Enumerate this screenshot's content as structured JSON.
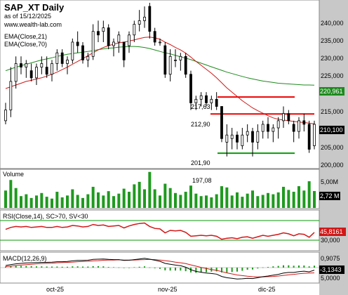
{
  "header": {
    "title": "SAP_XT Daily",
    "date_line": "as of 15/12/2025",
    "source": "www.wealth-lab.com"
  },
  "colors": {
    "bull_candle": "#ffffff",
    "bear_candle": "#000000",
    "ema21": "#d01818",
    "ema70": "#1e8a1e",
    "hline_red": "#ee0000",
    "hline_green": "#0a9a0a",
    "volume_bar": "#1f9a1f",
    "axis_panel": "#c8c8c8",
    "last_price_box": "#000000",
    "ema70_box": "#1e8a1e",
    "rsi_box": "#d01818",
    "macd_box": "#000000"
  },
  "price_panel": {
    "legend": [
      "EMA(Close,21)",
      "EMA(Close,70)"
    ],
    "axis_labels": [
      "240,000",
      "235,000",
      "230,000",
      "225,000",
      "215,000",
      "205,000",
      "200,000"
    ],
    "last_price_label": "210,100",
    "ema70_label": "220,961",
    "annotations": [
      {
        "text": "217,63",
        "price": 217.63
      },
      {
        "text": "212,90",
        "price": 212.9
      },
      {
        "text": "201,90",
        "price": 201.9
      }
    ],
    "level_lines": [
      {
        "price": 217.63,
        "color": "red"
      },
      {
        "price": 212.9,
        "color": "red"
      },
      {
        "price": 201.9,
        "color": "green"
      }
    ]
  },
  "volume_panel": {
    "title": "Volume",
    "annotation": "197,08",
    "axis_labels": [
      "5,00M"
    ],
    "last_label": "2,72 M"
  },
  "rsi_panel": {
    "title": "RSI(Close,14), SC>70, SV<30",
    "axis_labels": [
      "30,000"
    ],
    "last_label": "45,8161"
  },
  "macd_panel": {
    "title": "MACD(12,26,9)",
    "axis_labels": [
      "5,0000"
    ],
    "last_label_1": "0,9075",
    "last_label_2": "-3,1343"
  },
  "x_axis": {
    "labels": [
      "oct-25",
      "nov-25",
      "dic-25"
    ]
  },
  "chart_data": {
    "type": "candlestick",
    "ylim": [
      198,
      244
    ],
    "ohlc": [
      [
        211,
        216,
        210,
        214
      ],
      [
        214,
        226,
        212,
        222
      ],
      [
        222,
        229,
        220,
        227
      ],
      [
        227,
        229,
        224,
        226
      ],
      [
        226,
        228,
        223,
        227
      ],
      [
        225,
        227,
        222,
        223
      ],
      [
        223,
        227,
        221,
        226
      ],
      [
        226,
        229,
        224,
        227
      ],
      [
        226,
        229,
        223,
        224
      ],
      [
        224,
        228,
        222,
        227
      ],
      [
        227,
        231,
        225,
        230
      ],
      [
        230,
        231,
        226,
        227
      ],
      [
        227,
        229,
        224,
        228
      ],
      [
        228,
        234,
        227,
        233
      ],
      [
        233,
        236,
        230,
        232
      ],
      [
        232,
        233,
        227,
        228
      ],
      [
        228,
        230,
        226,
        229
      ],
      [
        229,
        238,
        228,
        236
      ],
      [
        236,
        239,
        233,
        235
      ],
      [
        236,
        239,
        233,
        237
      ],
      [
        237,
        238,
        231,
        232
      ],
      [
        232,
        234,
        229,
        233
      ],
      [
        233,
        236,
        230,
        235
      ],
      [
        233,
        233,
        226,
        228
      ],
      [
        232,
        236,
        230,
        235
      ],
      [
        235,
        239,
        233,
        238
      ],
      [
        238,
        242,
        236,
        239
      ],
      [
        239,
        243,
        237,
        240
      ],
      [
        243,
        244,
        234,
        236
      ],
      [
        236,
        237,
        232,
        233
      ],
      [
        233,
        234,
        232,
        233
      ],
      [
        232,
        233,
        223,
        224
      ],
      [
        224,
        231,
        222,
        229
      ],
      [
        228,
        231,
        226,
        228
      ],
      [
        228,
        230,
        225,
        229
      ],
      [
        229,
        230,
        223,
        224
      ],
      [
        224,
        225,
        214,
        216
      ],
      [
        216,
        218,
        214,
        217
      ],
      [
        217,
        219,
        215,
        218
      ],
      [
        218,
        219,
        215,
        216
      ],
      [
        216,
        218,
        214,
        217
      ],
      [
        217,
        219,
        214,
        215
      ],
      [
        215,
        215,
        205,
        206
      ],
      [
        205,
        210,
        201,
        207
      ],
      [
        206,
        209,
        203,
        207
      ],
      [
        207,
        208,
        203,
        205
      ],
      [
        204,
        209,
        203,
        207
      ],
      [
        207,
        210,
        205,
        208
      ],
      [
        208,
        209,
        201,
        205
      ],
      [
        205,
        210,
        203,
        208
      ],
      [
        208,
        211,
        206,
        210
      ],
      [
        210,
        212,
        206,
        208
      ],
      [
        208,
        210,
        205,
        209
      ],
      [
        209,
        212,
        206,
        211
      ],
      [
        211,
        215,
        209,
        213
      ],
      [
        213,
        214,
        210,
        211
      ],
      [
        210,
        211,
        205,
        208
      ],
      [
        208,
        212,
        206,
        211
      ],
      [
        211,
        213,
        208,
        210
      ],
      [
        210,
        211,
        202,
        203
      ],
      [
        204,
        211,
        203,
        210
      ]
    ],
    "ema21": [
      220,
      220.5,
      221,
      221.5,
      222,
      222.3,
      222.7,
      223,
      223.5,
      224,
      224.6,
      225.3,
      226,
      226.8,
      227.6,
      228.4,
      229.2,
      230,
      230.8,
      231.5,
      232,
      232.4,
      232.8,
      233,
      233.3,
      233.6,
      234,
      234.3,
      234.4,
      234.2,
      233.8,
      233,
      232.3,
      231.5,
      230.8,
      229.9,
      228.8,
      227.6,
      226.5,
      225.4,
      224.3,
      223,
      221.6,
      220.2,
      219,
      217.8,
      216.6,
      215.6,
      214.6,
      213.8,
      213.1,
      212.4,
      211.8,
      211.4,
      211.2,
      211,
      210.8,
      210.6,
      210.5,
      210.3,
      210.1
    ],
    "ema70": [
      225,
      225.5,
      226,
      226.4,
      226.8,
      227.2,
      227.6,
      228,
      228.3,
      228.6,
      229,
      229.3,
      229.6,
      229.8,
      230,
      230.2,
      230.4,
      230.6,
      230.9,
      231.1,
      231.3,
      231.4,
      231.6,
      231.7,
      231.8,
      231.8,
      231.7,
      231.5,
      231.2,
      230.8,
      230.4,
      230,
      229.7,
      229.3,
      228.9,
      228.5,
      228.1,
      227.6,
      227.1,
      226.6,
      226.1,
      225.6,
      225.1,
      224.6,
      224.2,
      223.8,
      223.4,
      223,
      222.7,
      222.4,
      222.1,
      221.9,
      221.7,
      221.5,
      221.4,
      221.3,
      221.2,
      221.1,
      221,
      221,
      220.961
    ],
    "volume": [
      2.8,
      4.5,
      3.2,
      1.9,
      2.2,
      1.6,
      2.0,
      2.4,
      1.8,
      1.5,
      2.6,
      1.7,
      2.0,
      3.0,
      2.1,
      1.6,
      2.2,
      3.4,
      2.5,
      2.0,
      2.7,
      1.9,
      2.3,
      3.1,
      2.6,
      3.8,
      4.2,
      3.0,
      5.8,
      3.0,
      2.0,
      3.9,
      3.2,
      2.4,
      2.1,
      2.6,
      3.6,
      2.3,
      1.9,
      2.0,
      1.7,
      2.2,
      3.5,
      3.3,
      2.0,
      2.5,
      1.8,
      2.3,
      2.8,
      1.9,
      2.1,
      2.4,
      2.2,
      2.5,
      3.4,
      2.9,
      2.6,
      3.5,
      2.8,
      4.3,
      2.72
    ],
    "rsi": [
      52,
      56,
      58,
      57,
      58,
      56,
      57,
      58,
      56,
      56,
      58,
      56,
      57,
      60,
      59,
      57,
      58,
      62,
      60,
      61,
      58,
      59,
      60,
      55,
      59,
      62,
      64,
      65,
      58,
      54,
      53,
      45,
      50,
      49,
      50,
      46,
      38,
      39,
      40,
      39,
      40,
      38,
      32,
      34,
      35,
      33,
      36,
      37,
      34,
      37,
      40,
      38,
      40,
      42,
      45,
      43,
      39,
      43,
      42,
      36,
      45.8
    ],
    "macd": [
      1,
      1.4,
      1.8,
      2,
      2.2,
      2.3,
      2.4,
      2.5,
      2.5,
      2.6,
      2.8,
      2.8,
      2.9,
      3.2,
      3.4,
      3.4,
      3.5,
      3.9,
      4.0,
      4.1,
      3.9,
      3.8,
      3.8,
      3.4,
      3.5,
      3.8,
      4.1,
      4.4,
      4.0,
      3.5,
      3.0,
      2.0,
      1.6,
      1.2,
      0.9,
      0.2,
      -1.0,
      -1.8,
      -2.2,
      -2.6,
      -2.8,
      -3.1,
      -4.2,
      -4.8,
      -5.1,
      -5.4,
      -5.3,
      -5.1,
      -5.2,
      -4.8,
      -4.3,
      -4.0,
      -3.6,
      -3.2,
      -2.6,
      -2.3,
      -2.3,
      -1.9,
      -1.7,
      -2.0,
      -1.2
    ],
    "macd_signal": [
      0.5,
      0.7,
      1.0,
      1.2,
      1.4,
      1.6,
      1.8,
      1.9,
      2.0,
      2.1,
      2.3,
      2.4,
      2.5,
      2.6,
      2.8,
      2.9,
      3.0,
      3.2,
      3.3,
      3.5,
      3.6,
      3.6,
      3.7,
      3.6,
      3.6,
      3.6,
      3.7,
      3.8,
      3.9,
      3.8,
      3.6,
      3.3,
      3.0,
      2.6,
      2.3,
      1.9,
      1.3,
      0.7,
      0.1,
      -0.4,
      -0.9,
      -1.3,
      -1.9,
      -2.5,
      -3.0,
      -3.5,
      -3.8,
      -4.1,
      -4.3,
      -4.4,
      -4.4,
      -4.3,
      -4.2,
      -4.0,
      -3.7,
      -3.4,
      -3.2,
      -2.9,
      -2.7,
      -2.6,
      -2.5
    ],
    "macd_hist": [
      0.5,
      0.7,
      0.8,
      0.8,
      0.8,
      0.7,
      0.6,
      0.6,
      0.5,
      0.5,
      0.5,
      0.4,
      0.4,
      0.6,
      0.6,
      0.5,
      0.5,
      0.7,
      0.7,
      0.6,
      0.3,
      0.2,
      0.1,
      -0.2,
      -0.1,
      0.2,
      0.4,
      0.6,
      0.1,
      -0.3,
      -0.6,
      -1.3,
      -1.4,
      -1.4,
      -1.4,
      -1.7,
      -2.3,
      -2.5,
      -2.3,
      -2.2,
      -1.9,
      -1.8,
      -2.3,
      -2.3,
      -2.1,
      -1.9,
      -1.5,
      -1.0,
      -0.9,
      -0.4,
      0.1,
      0.3,
      0.6,
      0.8,
      1.1,
      1.1,
      0.9,
      1.0,
      1.0,
      0.6,
      0.9075
    ]
  }
}
